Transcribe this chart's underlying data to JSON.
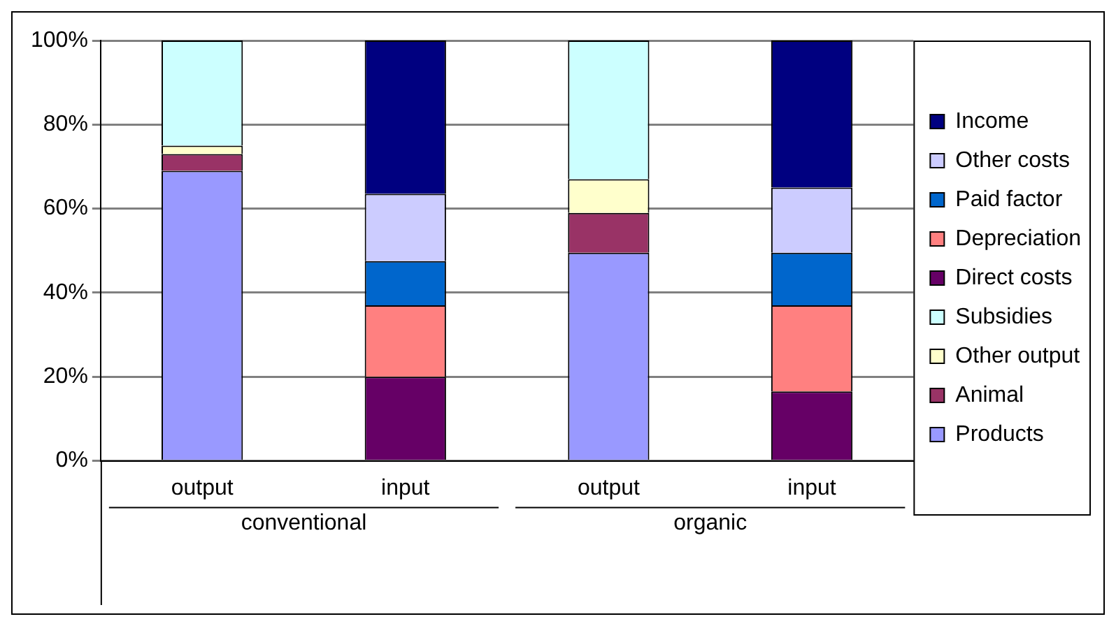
{
  "chart_data": {
    "type": "bar",
    "stacked": true,
    "categories": [
      "output",
      "input",
      "output",
      "input"
    ],
    "annotations": [
      "conventional",
      "organic"
    ],
    "ylim": [
      0,
      100
    ],
    "yticks": [
      {
        "value": 0,
        "label": "0%"
      },
      {
        "value": 20,
        "label": "20%"
      },
      {
        "value": 40,
        "label": "40%"
      },
      {
        "value": 60,
        "label": "60%"
      },
      {
        "value": 80,
        "label": "80%"
      },
      {
        "value": 100,
        "label": "100%"
      }
    ],
    "grid": "y",
    "legend": "right",
    "series": [
      {
        "name": "Products",
        "color": "#9999ff",
        "values": [
          69,
          null,
          49.5,
          null
        ]
      },
      {
        "name": "Animal",
        "color": "#993366",
        "values": [
          4,
          null,
          9.5,
          null
        ]
      },
      {
        "name": "Other output",
        "color": "#ffffcc",
        "values": [
          2,
          null,
          8,
          null
        ]
      },
      {
        "name": "Subsidies",
        "color": "#ccffff",
        "values": [
          25,
          null,
          33,
          null
        ]
      },
      {
        "name": "Direct costs",
        "color": "#660066",
        "values": [
          null,
          20,
          null,
          16.5
        ]
      },
      {
        "name": "Depreciation",
        "color": "#ff8080",
        "values": [
          null,
          17,
          null,
          20.5
        ]
      },
      {
        "name": "Paid factor",
        "color": "#0066cc",
        "values": [
          null,
          10.5,
          null,
          12.5
        ]
      },
      {
        "name": "Other costs",
        "color": "#ccccff",
        "values": [
          null,
          16,
          null,
          15.5
        ]
      },
      {
        "name": "Income",
        "color": "#000080",
        "values": [
          null,
          36.5,
          null,
          35
        ]
      }
    ]
  }
}
